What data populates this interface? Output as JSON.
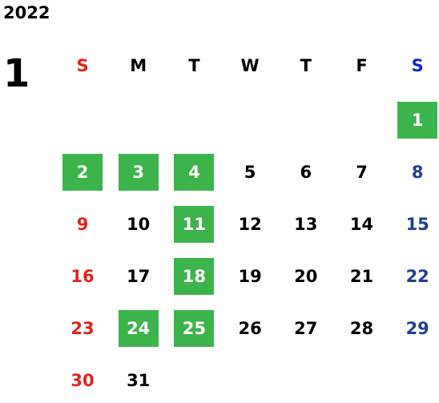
{
  "calendar": {
    "year": "2022",
    "month": "1",
    "weekdays": [
      "S",
      "M",
      "T",
      "W",
      "T",
      "F",
      "S"
    ],
    "weekday_colors": [
      "#e3211c",
      "#000000",
      "#000000",
      "#000000",
      "#000000",
      "#000000",
      "#0a24d6"
    ],
    "day_colors": [
      "#e3211c",
      "#000000",
      "#000000",
      "#000000",
      "#000000",
      "#000000",
      "#1e3f91"
    ],
    "highlight_color": "#3cb44b",
    "highlight_text_color": "#ffffff",
    "weeks": [
      [
        null,
        null,
        null,
        null,
        null,
        null,
        {
          "day": 1,
          "highlight": true
        }
      ],
      [
        {
          "day": 2,
          "highlight": true
        },
        {
          "day": 3,
          "highlight": true
        },
        {
          "day": 4,
          "highlight": true
        },
        {
          "day": 5,
          "highlight": false
        },
        {
          "day": 6,
          "highlight": false
        },
        {
          "day": 7,
          "highlight": false
        },
        {
          "day": 8,
          "highlight": false
        }
      ],
      [
        {
          "day": 9,
          "highlight": false
        },
        {
          "day": 10,
          "highlight": false
        },
        {
          "day": 11,
          "highlight": true
        },
        {
          "day": 12,
          "highlight": false
        },
        {
          "day": 13,
          "highlight": false
        },
        {
          "day": 14,
          "highlight": false
        },
        {
          "day": 15,
          "highlight": false
        }
      ],
      [
        {
          "day": 16,
          "highlight": false
        },
        {
          "day": 17,
          "highlight": false
        },
        {
          "day": 18,
          "highlight": true
        },
        {
          "day": 19,
          "highlight": false
        },
        {
          "day": 20,
          "highlight": false
        },
        {
          "day": 21,
          "highlight": false
        },
        {
          "day": 22,
          "highlight": false
        }
      ],
      [
        {
          "day": 23,
          "highlight": false
        },
        {
          "day": 24,
          "highlight": true
        },
        {
          "day": 25,
          "highlight": true
        },
        {
          "day": 26,
          "highlight": false
        },
        {
          "day": 27,
          "highlight": false
        },
        {
          "day": 28,
          "highlight": false
        },
        {
          "day": 29,
          "highlight": false
        }
      ],
      [
        {
          "day": 30,
          "highlight": false
        },
        {
          "day": 31,
          "highlight": false
        },
        null,
        null,
        null,
        null,
        null
      ]
    ]
  }
}
